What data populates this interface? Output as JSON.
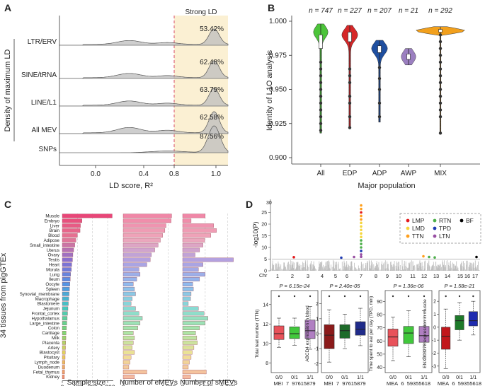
{
  "panels": {
    "A": {
      "label": "A",
      "strong_ld_label": "Strong LD",
      "ylabel": "Density of maximum LD",
      "xlabel": "LD score, R²",
      "categories": [
        "LTR/ERV",
        "SINE/tRNA",
        "LINE/L1",
        "All MEV",
        "SNPs"
      ],
      "percents": [
        "53.42%",
        "62.48%",
        "63.79%",
        "62.58%",
        "87.56%"
      ],
      "xticks": [
        "0.0",
        "0.4",
        "0.8",
        "1.0"
      ]
    },
    "B": {
      "label": "B",
      "ylabel": "Identity of L1O analysis",
      "xlabel": "Major population",
      "categories": [
        "All",
        "EDP",
        "ADP",
        "AWP",
        "MIX"
      ],
      "counts": [
        "n = 747",
        "n = 227",
        "n = 207",
        "n = 21",
        "n = 292"
      ],
      "yticks": [
        "1.000",
        "0.975",
        "0.950",
        "0.925",
        "0.900"
      ],
      "colors": [
        "#4cc43a",
        "#d62728",
        "#1f4fa0",
        "#9b7fc0",
        "#f2a01c"
      ]
    },
    "C": {
      "label": "C",
      "ylabel": "34 tissues from pigGTEx",
      "tissues": [
        "Muscle",
        "Embryo",
        "Liver",
        "Brain",
        "Blood",
        "Adipose",
        "Small_intestine",
        "Uterus",
        "Ovary",
        "Testis",
        "Heart",
        "Morula",
        "Lung",
        "Ileum",
        "Oocyte",
        "Spleen",
        "Synovial_membrane",
        "Macrophage",
        "Blastomere",
        "Jejunum",
        "Frontal_cortex",
        "Hypothalamus",
        "Large_intestine",
        "Colon",
        "Cartilage",
        "Milk",
        "Placenta",
        "Artery",
        "Blastocyst",
        "Pituitary",
        "Lymph_node",
        "Duodenum",
        "Fetal_thymus",
        "Kidney"
      ],
      "sample_size": [
        1321,
        520,
        480,
        470,
        400,
        360,
        330,
        300,
        280,
        270,
        250,
        240,
        220,
        210,
        200,
        190,
        180,
        170,
        160,
        150,
        140,
        130,
        120,
        110,
        100,
        95,
        90,
        85,
        80,
        75,
        70,
        65,
        60,
        55
      ],
      "emevs": [
        4300,
        4250,
        3800,
        3700,
        3500,
        3300,
        3100,
        2800,
        2500,
        2400,
        2100,
        1400,
        1500,
        1200,
        900,
        1000,
        1100,
        800,
        700,
        1100,
        1400,
        1700,
        1500,
        1300,
        900,
        1000,
        900,
        800,
        1000,
        700,
        600,
        500,
        2100,
        1000
      ],
      "smevs": [
        4000,
        1500,
        5500,
        6000,
        5000,
        3900,
        3600,
        3000,
        2200,
        9000,
        3600,
        2800,
        4000,
        3000,
        1800,
        1900,
        1500,
        1400,
        1000,
        2800,
        3800,
        4500,
        4000,
        3000,
        2300,
        2500,
        2600,
        2000,
        1700,
        1500,
        1200,
        1000,
        4200,
        1400
      ],
      "xlabels": [
        "Sample size",
        "Number of eMEVs",
        "Number of sMEVs"
      ],
      "ticks_sample": [
        "0",
        "400",
        "800",
        "1,200"
      ],
      "ticks_emev": [
        "0",
        "4,000"
      ],
      "ticks_smev": [
        "0",
        "4,000",
        "8,000"
      ]
    },
    "D": {
      "label": "D",
      "ylabel": "-log10(P)",
      "chr_label": "Chr",
      "chromosomes": [
        "1",
        "2",
        "3",
        "4",
        "5",
        "6",
        "7",
        "8",
        "9",
        "10",
        "11",
        "12",
        "13",
        "14",
        "15",
        "16",
        "17"
      ],
      "yticks": [
        "0",
        "5",
        "10",
        "15",
        "20",
        "25",
        "30"
      ],
      "legend": [
        {
          "label": "LMP",
          "color": "#e41a1c"
        },
        {
          "label": "RTN",
          "color": "#4daf4a"
        },
        {
          "label": "BF",
          "color": "#000000"
        },
        {
          "label": "LMD",
          "color": "#f5d63d"
        },
        {
          "label": "TPD",
          "color": "#1f3bb3"
        },
        {
          "label": "TTN",
          "color": "#ff9f1c"
        },
        {
          "label": "LTN",
          "color": "#984ea3"
        }
      ],
      "genotypes": [
        "0/0",
        "0/1",
        "1/1"
      ],
      "boxplots": [
        {
          "p": "P = 6.15e-24",
          "ylabel": "Total teat number (TTN)",
          "xlabel": "MEI_7_97615879",
          "yticks": [
            "14",
            "12",
            "10",
            "8"
          ],
          "colors": [
            "#e8525a",
            "#41c83c",
            "#b07fc2"
          ]
        },
        {
          "p": "P = 2.40e-05",
          "ylabel": "ABCD4 expression in blood",
          "xlabel": "MEI_7_97615879",
          "yticks": [
            "2",
            "1",
            "0",
            "-1",
            "-2"
          ],
          "colors": [
            "#8b1a1a",
            "#1e6b2a",
            "#1f2b8a"
          ]
        },
        {
          "p": "P = 1.36e-06",
          "ylabel": "Time spent to eat per day (TPD, min)",
          "xlabel": "MEA_6_59355618",
          "yticks": [
            "90",
            "80",
            "70",
            "60",
            "50",
            "40"
          ],
          "colors": [
            "#e8525a",
            "#41c83c",
            "#b07fc2"
          ]
        },
        {
          "p": "P = 1.58e-21",
          "ylabel": "ENX003278 expression in muscle",
          "xlabel": "MEA_6_59355618",
          "yticks": [
            "2",
            "1",
            "0",
            "-1",
            "-2",
            "-3"
          ],
          "colors": [
            "#c2161b",
            "#1e7a2a",
            "#1f2bb0"
          ]
        }
      ]
    }
  }
}
